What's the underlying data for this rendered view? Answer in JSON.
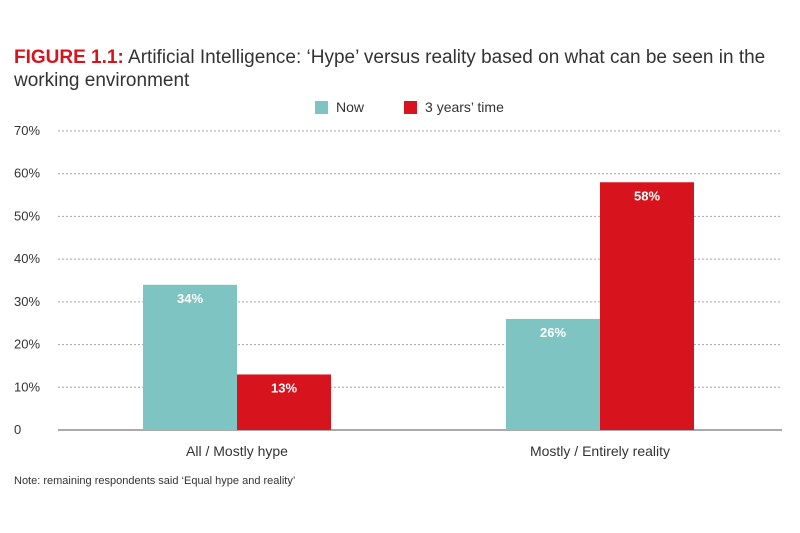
{
  "figure": {
    "label": "FIGURE 1.1:",
    "title_text": " Artificial Intelligence: ‘Hype’ versus reality based on what can be seen in the working environment",
    "note": "Note: remaining respondents said ‘Equal hype and reality’"
  },
  "colors": {
    "now": "#7dc4c2",
    "future": "#d7141e",
    "grid": "#a6a6a6"
  },
  "chart_data": {
    "type": "bar",
    "title": "Artificial Intelligence: ‘Hype’ versus reality based on what can be seen in the working environment",
    "categories": [
      "All / Mostly hype",
      "Mostly / Entirely reality"
    ],
    "series": [
      {
        "name": "Now",
        "values": [
          34,
          26
        ],
        "labels": [
          "34%",
          "26%"
        ]
      },
      {
        "name": "3 years’ time",
        "values": [
          13,
          58
        ],
        "labels": [
          "13%",
          "58%"
        ]
      }
    ],
    "yticks": [
      {
        "value": 0,
        "label": "0"
      },
      {
        "value": 10,
        "label": "10%"
      },
      {
        "value": 20,
        "label": "20%"
      },
      {
        "value": 30,
        "label": "30%"
      },
      {
        "value": 40,
        "label": "40%"
      },
      {
        "value": 50,
        "label": "50%"
      },
      {
        "value": 60,
        "label": "60%"
      },
      {
        "value": 70,
        "label": "70%"
      }
    ],
    "ylim": [
      0,
      70
    ],
    "xlabel": "",
    "ylabel": "",
    "legend_position": "top-center",
    "grid": true
  }
}
